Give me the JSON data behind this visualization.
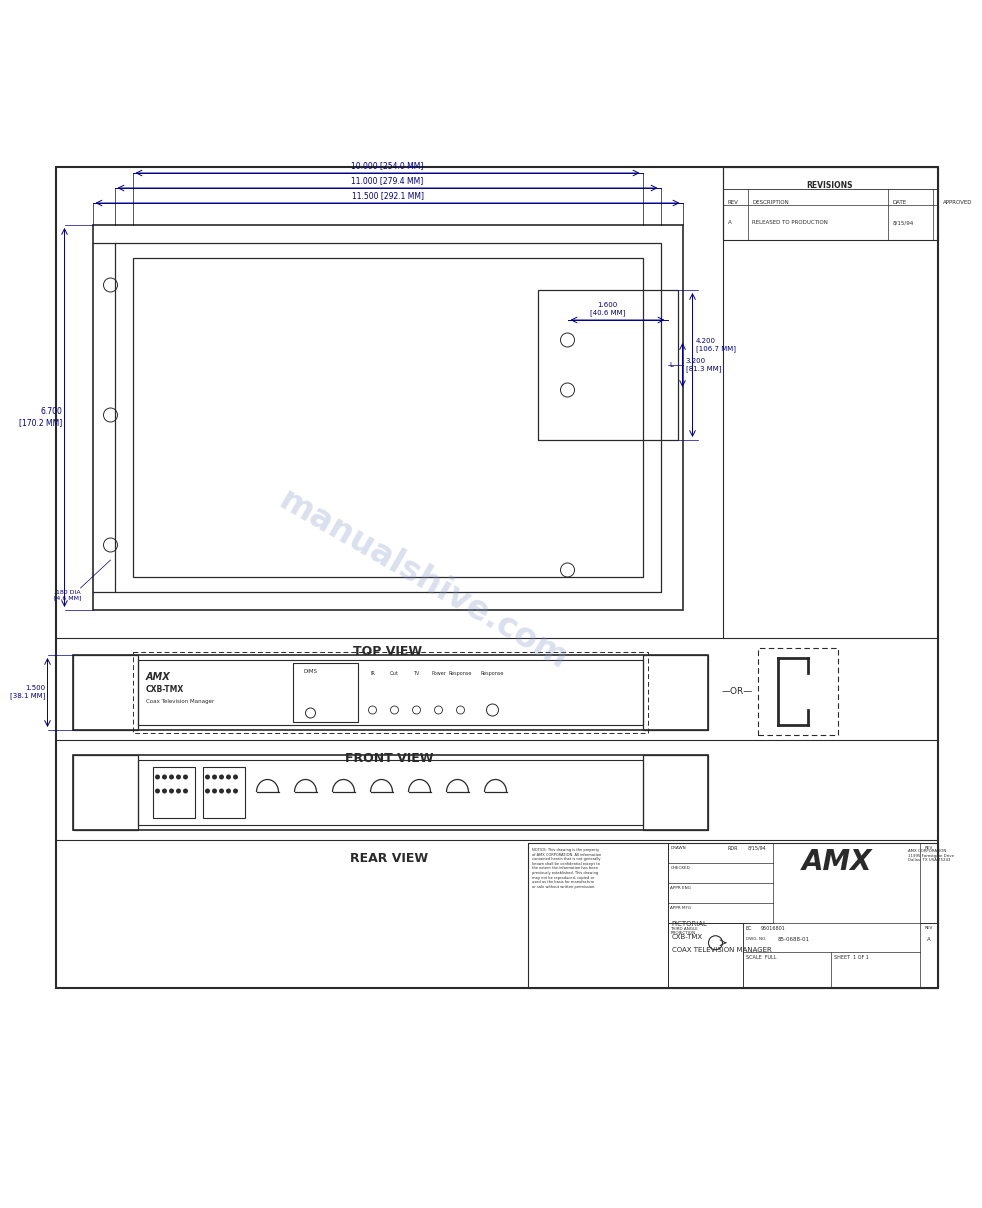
{
  "bg_color": "#ffffff",
  "line_color": "#2a2a2a",
  "dim_color": "#00008B",
  "watermark_color": "#8899cc",
  "page_width": 9.18,
  "page_height": 11.88,
  "top_view": {
    "label": "TOP VIEW",
    "dim_w1": "11.500 [292.1 MM]",
    "dim_w2": "11.000 [279.4 MM]",
    "dim_w3": "10.000 [254.0 MM]",
    "dim_h": "6.700\n[170.2 MM]",
    "dim_hole": ".180 DIA\n[4.6 MM]",
    "detail_dim_w": "1.600\n[40.6 MM]",
    "detail_dim_h1": "4.200\n[106.7 MM]",
    "detail_dim_h2": "3.200\n[81.3 MM]"
  },
  "front_view": {
    "label": "FRONT VIEW",
    "dim_h": "1.500\n[38.1 MM]"
  },
  "rear_view": {
    "label": "REAR VIEW"
  },
  "revisions": {
    "header": "REVISIONS",
    "cols": [
      "REV",
      "DESCRIPTION",
      "DATE",
      "APPROVED"
    ],
    "row": [
      "A",
      "RELEASED TO PRODUCTION",
      "8/15/94",
      ""
    ]
  },
  "title_block": {
    "notice": "NOTICE: This drawing is the property\nof AMX CORPORATION. All information\ncontained herein that is not generally\nknown shall be confidential except to\nthe extent the information has been\npreviously established. This drawing\nmay not be reproduced, copied or\nused as the basis for manufacture\nor sale without written permission.",
    "drawn_label": "DRAWN",
    "checked_label": "CHECKED",
    "appr_eng": "APPR ENG",
    "appr_mfg": "APPR MFG",
    "drawn_by": "RDR",
    "date": "8/15/94",
    "third_angle": "THIRD ANGLE\nPROJECTION",
    "amx_logo": "AMX",
    "company": "AMX CORPORATION\n11995 Forestgate Drive\nDallas, TX USA 75243",
    "title1": "PICTORIAL",
    "title2": "CXB-TMX",
    "title3": "COAX TELEVISION MANAGER",
    "ec": "95016801",
    "dwg_no": "85-0688-01",
    "scale": "SCALE  FULL",
    "sheet": "SHEET  1 OF 1",
    "rev": "A",
    "rev_label": "REV"
  }
}
